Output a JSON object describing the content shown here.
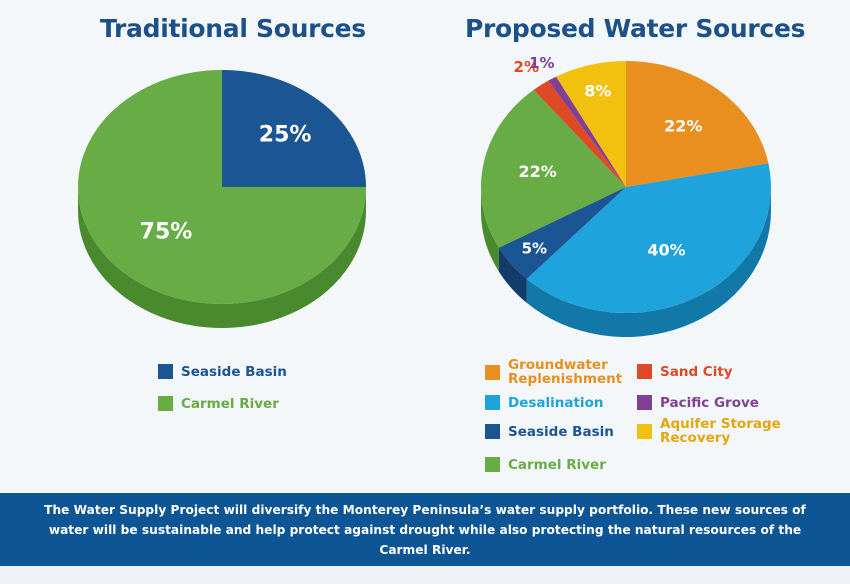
{
  "chart_data": [
    {
      "type": "pie",
      "title": "Traditional Sources",
      "categories": [
        "Seaside Basin",
        "Carmel River"
      ],
      "values": [
        25,
        75
      ],
      "labels": [
        "25%",
        "75%"
      ],
      "colors": [
        "#1b5594",
        "#67ac45"
      ],
      "side_colors": [
        "#123c6a",
        "#4a8a2e"
      ],
      "label_colors": [
        "#ffffff",
        "#ffffff"
      ],
      "legend": [
        "Seaside Basin",
        "Carmel River"
      ],
      "legend_colors": [
        "#1b5594",
        "#67ac45"
      ],
      "legend_text_colors": [
        "#1b5594",
        "#67ac45"
      ]
    },
    {
      "type": "pie",
      "title": "Proposed Water Sources",
      "categories": [
        "Groundwater Replenishment",
        "Desalination",
        "Seaside Basin",
        "Carmel River",
        "Sand City",
        "Pacific Grove",
        "Aquifer Storage Recovery"
      ],
      "values": [
        22,
        40,
        5,
        22,
        2,
        1,
        8
      ],
      "labels": [
        "22%",
        "40%",
        "5%",
        "22%",
        "2%",
        "1%",
        "8%"
      ],
      "colors": [
        "#e88f1f",
        "#1ea3dc",
        "#1b5594",
        "#67ac45",
        "#de4a26",
        "#804194",
        "#f2c10f"
      ],
      "side_colors": [
        "#b06a12",
        "#1278a8",
        "#123c6a",
        "#4a8a2e",
        "#a8351a",
        "#5c2d6c",
        "#b8910a"
      ],
      "label_colors": [
        "#ffffff",
        "#ffffff",
        "#ffffff",
        "#ffffff",
        "#de4a26",
        "#804194",
        "#ffffff"
      ],
      "legend": [
        "Groundwater Replenishment",
        "Sand City",
        "Desalination",
        "Pacific Grove",
        "Seaside Basin",
        "Aquifer Storage Recovery",
        "Carmel River"
      ],
      "legend_display": [
        "Groundwater\nReplenishment",
        "Sand City",
        "Desalination",
        "Pacific Grove",
        "Seaside Basin",
        "Aquifer Storage\nRecovery",
        "Carmel River"
      ],
      "legend_colors": [
        "#e88f1f",
        "#de4a26",
        "#1ea3dc",
        "#804194",
        "#1b5594",
        "#f2c10f",
        "#67ac45"
      ],
      "legend_text_colors": [
        "#e88f1f",
        "#de4a26",
        "#1ea3dc",
        "#804194",
        "#1b5594",
        "#e0a80a",
        "#67ac45"
      ]
    }
  ],
  "footer": {
    "text": "The Water Supply Project will diversify the Monterey Peninsula’s water supply portfolio. These new sources of water will be sustainable and help protect against drought while also protecting the natural resources of the Carmel River."
  }
}
